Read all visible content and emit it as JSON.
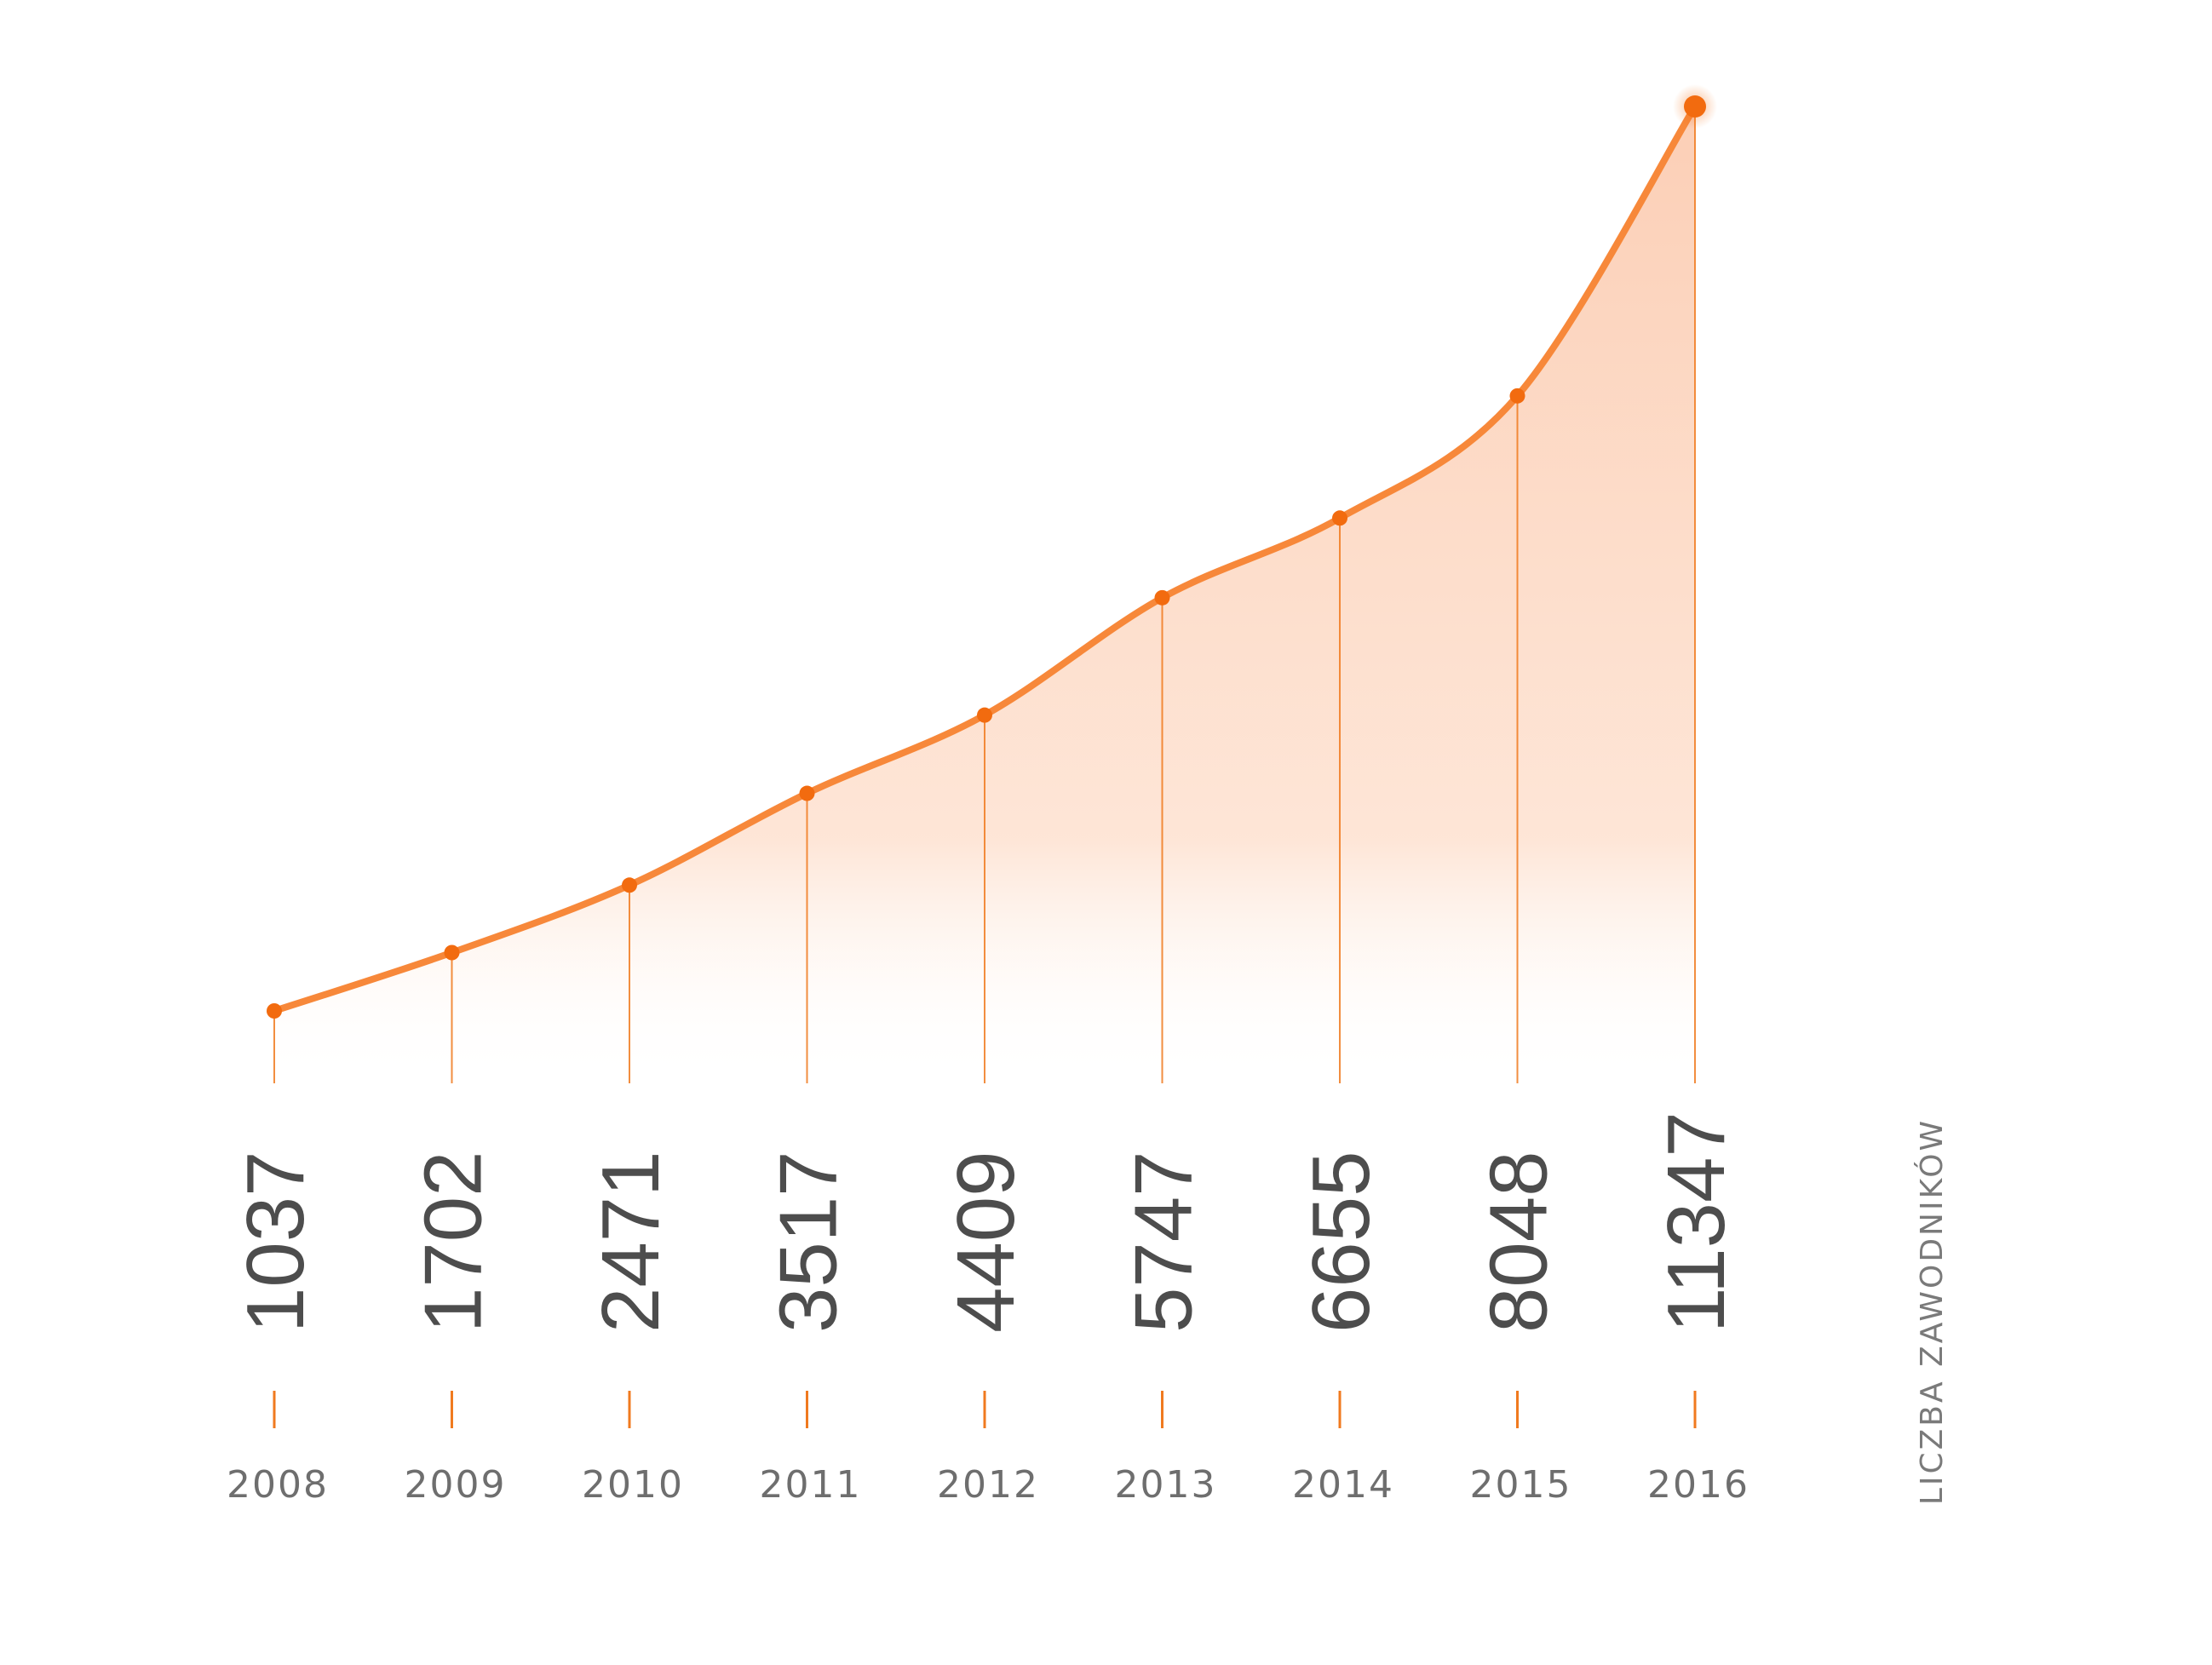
{
  "chart_data": {
    "type": "area",
    "categories": [
      "2008",
      "2009",
      "2010",
      "2011",
      "2012",
      "2013",
      "2014",
      "2015",
      "2016"
    ],
    "series": [
      {
        "values": [
          1037,
          1702,
          2471,
          3517,
          4409,
          5747,
          6655,
          8048,
          11347
        ]
      }
    ],
    "value_labels": [
      "1037",
      "1702",
      "2471",
      "3517",
      "4409",
      "5747",
      "6655",
      "8048",
      "11347"
    ],
    "side_label": "LICZBA ZAWODNIKÓW",
    "ylim": [
      0,
      11347
    ],
    "grid": false,
    "legend": "none",
    "colors": {
      "line": "#f7883a",
      "point": "#f26b0f",
      "fill": "#f9a77a",
      "axis": "#f07a1f",
      "text": "#4d4d4d",
      "year_text": "#6e6e6e"
    }
  }
}
